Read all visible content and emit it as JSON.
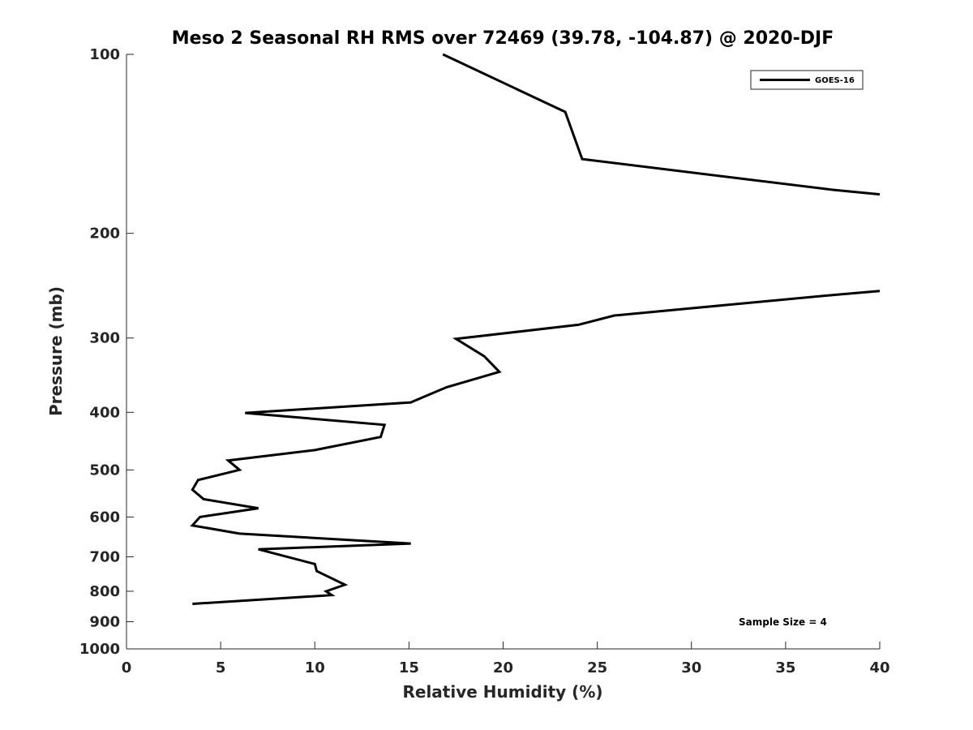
{
  "chart_data": {
    "type": "line",
    "title": "Meso 2 Seasonal RH RMS over 72469 (39.78, -104.87) @ 2020-DJF",
    "xlabel": "Relative Humidity (%)",
    "ylabel": "Pressure (mb)",
    "xlim": [
      0,
      40
    ],
    "ylim": [
      100,
      1000
    ],
    "yscale": "log",
    "y_reversed": true,
    "xticks": [
      0,
      5,
      10,
      15,
      20,
      25,
      30,
      35,
      40
    ],
    "xtick_labels": [
      "0",
      "5",
      "10",
      "15",
      "20",
      "25",
      "30",
      "35",
      "40"
    ],
    "yticks": [
      100,
      200,
      300,
      400,
      500,
      600,
      700,
      800,
      900,
      1000
    ],
    "ytick_labels": [
      "100",
      "200",
      "300",
      "400",
      "500",
      "600",
      "700",
      "800",
      "900",
      "1000"
    ],
    "grid": false,
    "legend_position": "top-right",
    "annotation": "Sample Size = 4",
    "series": [
      {
        "name": "GOES-16",
        "color": "#000000",
        "points": [
          [
            16.8,
            100
          ],
          [
            23.3,
            125
          ],
          [
            24.2,
            150
          ],
          [
            37.5,
            169
          ],
          [
            40,
            172
          ],
          [
            null,
            null
          ],
          [
            40,
            250
          ],
          [
            37.5,
            254
          ],
          [
            25.9,
            275
          ],
          [
            24.0,
            285
          ],
          [
            17.5,
            301
          ],
          [
            19.0,
            322
          ],
          [
            19.8,
            342
          ],
          [
            17.0,
            363
          ],
          [
            15.1,
            385
          ],
          [
            6.3,
            401
          ],
          [
            13.7,
            420
          ],
          [
            13.5,
            440
          ],
          [
            10.0,
            463
          ],
          [
            5.4,
            482
          ],
          [
            6.0,
            500
          ],
          [
            3.8,
            520
          ],
          [
            3.5,
            540
          ],
          [
            4.1,
            560
          ],
          [
            7.0,
            580
          ],
          [
            3.9,
            600
          ],
          [
            3.5,
            620
          ],
          [
            6.0,
            640
          ],
          [
            15.1,
            665
          ],
          [
            7.0,
            680
          ],
          [
            10.0,
            720
          ],
          [
            10.1,
            740
          ],
          [
            11.6,
            780
          ],
          [
            10.6,
            800
          ],
          [
            10.9,
            812
          ],
          [
            3.5,
            840
          ]
        ]
      }
    ]
  }
}
